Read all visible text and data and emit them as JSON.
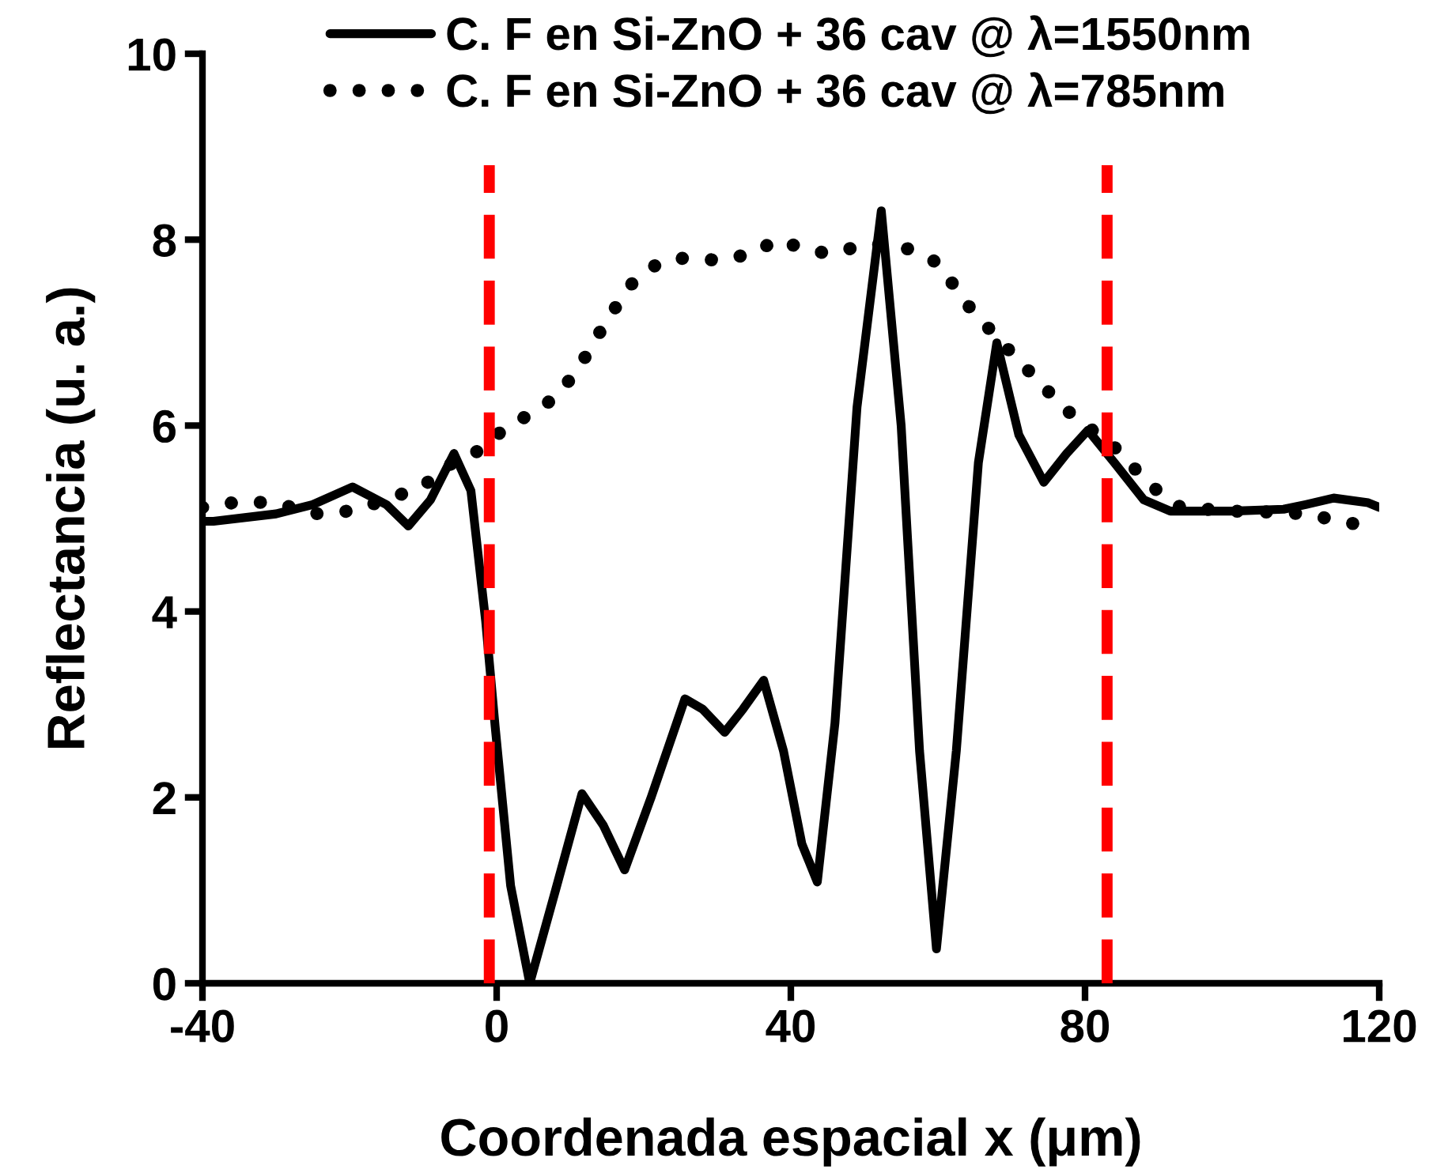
{
  "chart_data": {
    "type": "line",
    "xlabel": "Coordenada espacial x (μm)",
    "ylabel": "Reflectancia (u. a.)",
    "xlim": [
      -40,
      120
    ],
    "xticks": [
      -40,
      0,
      40,
      80,
      120
    ],
    "ylim": [
      0,
      10
    ],
    "yticks": [
      0,
      2,
      4,
      6,
      8,
      10
    ],
    "grid": false,
    "legend": "top",
    "series": [
      {
        "name": "C. F en Si-ZnO + 36 cav @ λ=1550nm",
        "color": "#000000",
        "line_style": "solid",
        "x": [
          -40,
          -38.5,
          -30,
          -25,
          -19.6,
          -15,
          -12,
          -9,
          -5.8,
          -3.5,
          -1.5,
          -0.2,
          1.9,
          4.5,
          8,
          11.6,
          14.5,
          17.4,
          21,
          25.6,
          28,
          31,
          33.5,
          36.3,
          39,
          41.5,
          43.6,
          46,
          49,
          52.3,
          55,
          57.5,
          59.8,
          62.5,
          65.5,
          68,
          71,
          74.4,
          77.5,
          80.4,
          84,
          88,
          91.6,
          100,
          107,
          110,
          113.8,
          118.5,
          120
        ],
        "values": [
          4.97,
          4.97,
          5.05,
          5.15,
          5.34,
          5.15,
          4.92,
          5.2,
          5.7,
          5.3,
          3.9,
          2.76,
          1.05,
          0,
          1.0,
          2.04,
          1.7,
          1.22,
          2.0,
          3.06,
          2.95,
          2.7,
          2.95,
          3.26,
          2.5,
          1.5,
          1.09,
          2.8,
          6.2,
          8.31,
          6.0,
          2.5,
          0.37,
          2.5,
          5.6,
          6.89,
          5.9,
          5.39,
          5.7,
          5.95,
          5.6,
          5.2,
          5.08,
          5.08,
          5.1,
          5.15,
          5.22,
          5.17,
          5.12
        ]
      },
      {
        "name": "C. F en Si-ZnO + 36 cav @ λ=785nm",
        "color": "#000000",
        "line_style": "dotted",
        "x": [
          -40,
          -35,
          -30,
          -25,
          -20,
          -15,
          -10,
          -6,
          -3,
          0,
          4,
          8,
          11,
          14,
          18,
          22,
          25,
          30,
          35,
          38,
          42,
          45,
          49,
          52,
          56,
          60,
          64,
          68,
          71,
          74,
          77,
          80,
          83,
          86,
          89,
          93,
          100,
          105,
          110,
          116,
          120
        ],
        "values": [
          5.12,
          5.18,
          5.17,
          5.05,
          5.08,
          5.2,
          5.35,
          5.6,
          5.7,
          5.9,
          6.1,
          6.3,
          6.6,
          7.0,
          7.5,
          7.75,
          7.8,
          7.78,
          7.85,
          8.0,
          7.9,
          7.85,
          7.92,
          7.95,
          7.9,
          7.75,
          7.3,
          6.95,
          6.7,
          6.45,
          6.2,
          6.0,
          5.85,
          5.6,
          5.35,
          5.12,
          5.08,
          5.07,
          5.05,
          4.95,
          4.92
        ]
      }
    ],
    "ref_lines": [
      {
        "axis": "x",
        "value": -1,
        "color": "#ff0000",
        "line_style": "dashed"
      },
      {
        "axis": "x",
        "value": 83,
        "color": "#ff0000",
        "line_style": "dashed"
      }
    ]
  }
}
